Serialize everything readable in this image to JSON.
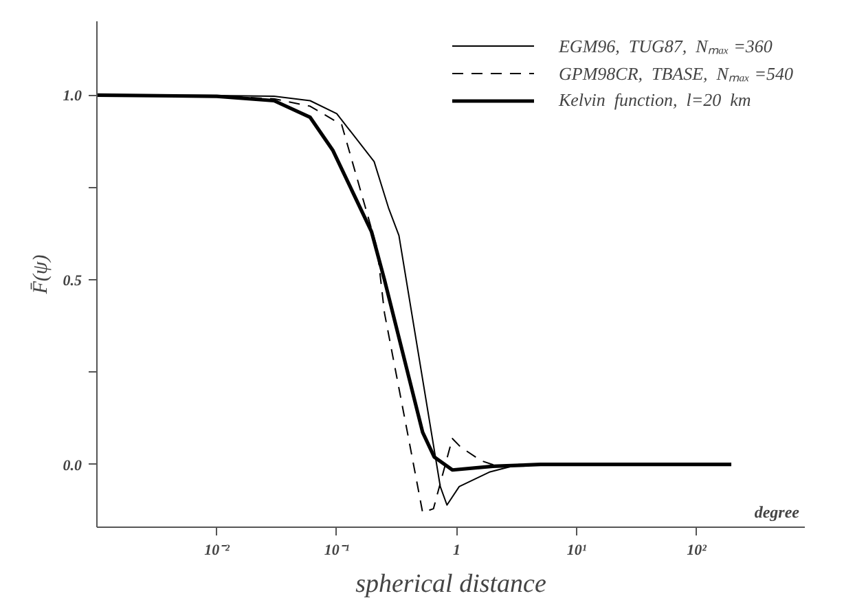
{
  "chart_data": {
    "type": "line",
    "xlabel": "spherical distance",
    "ylabel": "F̄(ψ)",
    "log": "x",
    "grid": false,
    "legend": "top right",
    "marker": "none",
    "xlim": [
      0.001,
      800
    ],
    "ylim": [
      -0.17,
      1.2
    ],
    "xticks": [
      {
        "value": 0.01,
        "label": "10⁻²"
      },
      {
        "value": 0.1,
        "label": "10⁻¹"
      },
      1,
      {
        "value": 10,
        "label": "10¹"
      },
      {
        "value": 100,
        "label": "10²"
      }
    ],
    "yticks": [
      {
        "value": 0,
        "label": "0.0"
      },
      {
        "value": 0.25,
        "label": null
      },
      {
        "value": 0.5,
        "label": "0.5"
      },
      {
        "value": 0.75,
        "label": null
      },
      {
        "value": 1,
        "label": "1.0"
      }
    ],
    "annotations": [
      "degree"
    ],
    "series": [
      {
        "name": "EGM96,  TUG87,  Nₘₐₓ =360",
        "color": "#000000",
        "line_style": "solid",
        "x": [
          0.001,
          0.01,
          0.03,
          0.06,
          0.1,
          0.205,
          0.27,
          0.33,
          0.73,
          0.83,
          1.05,
          1.9,
          3.3,
          10,
          195
        ],
        "values": [
          1,
          0.999,
          0.997,
          0.985,
          0.95,
          0.82,
          0.695,
          0.62,
          -0.06,
          -0.11,
          -0.06,
          -0.02,
          0,
          0,
          0
        ]
      },
      {
        "name": "GPM98CR,  TBASE,  Nₘₐₓ =540",
        "color": "#000000",
        "line_style": "dashed",
        "x": [
          0.001,
          0.01,
          0.03,
          0.06,
          0.11,
          0.217,
          0.25,
          0.4,
          0.52,
          0.64,
          0.92,
          1.08,
          1.6,
          2.3,
          5,
          195
        ],
        "values": [
          1,
          0.998,
          0.99,
          0.97,
          0.92,
          0.585,
          0.41,
          0.065,
          -0.13,
          -0.12,
          0.07,
          0.047,
          0.01,
          -0.007,
          0,
          0
        ]
      },
      {
        "name": "Kelvin  function,  l=20  km",
        "color": "#000000",
        "line_style": "solid",
        "x": [
          0.001,
          0.01,
          0.03,
          0.06,
          0.093,
          0.195,
          0.25,
          0.52,
          0.65,
          0.92,
          2,
          5,
          195
        ],
        "values": [
          1,
          0.997,
          0.985,
          0.94,
          0.85,
          0.63,
          0.5,
          0.087,
          0.02,
          -0.015,
          -0.005,
          0,
          0
        ]
      }
    ]
  }
}
